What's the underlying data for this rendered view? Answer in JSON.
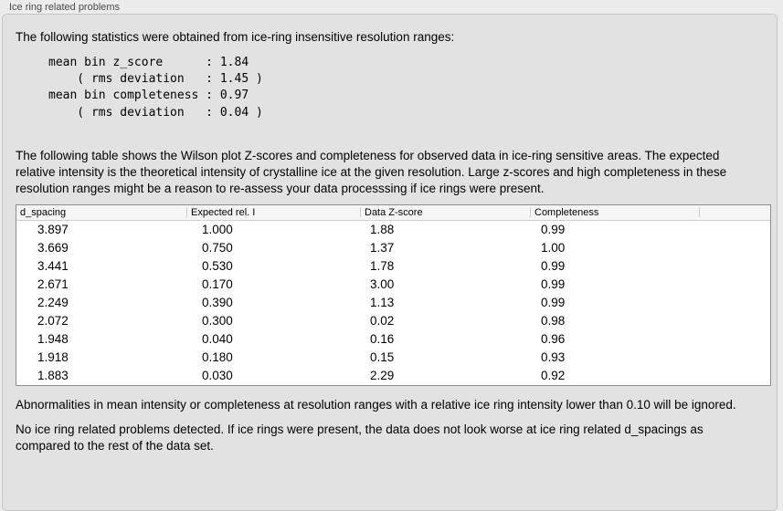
{
  "group_box": {
    "title": "Ice ring related problems"
  },
  "intro_text": "The following statistics were obtained from ice-ring insensitive resolution ranges:",
  "stats_block": "mean bin z_score      : 1.84\n    ( rms deviation   : 1.45 )\nmean bin completeness : 0.97\n    ( rms deviation   : 0.04 )",
  "table_description": "The following table shows the Wilson plot Z-scores and completeness for observed data in ice-ring sensitive areas. The expected relative intensity is the theoretical intensity of crystalline ice at the given resolution. Large z-scores and high completeness in these resolution ranges might be a reason to re-assess your data processsing if ice rings were present.",
  "table": {
    "columns": [
      "d_spacing",
      "Expected rel. I",
      "Data Z-score",
      "Completeness"
    ],
    "rows": [
      [
        "3.897",
        "1.000",
        "1.88",
        "0.99"
      ],
      [
        "3.669",
        "0.750",
        "1.37",
        "1.00"
      ],
      [
        "3.441",
        "0.530",
        "1.78",
        "0.99"
      ],
      [
        "2.671",
        "0.170",
        "3.00",
        "0.99"
      ],
      [
        "2.249",
        "0.390",
        "1.13",
        "0.99"
      ],
      [
        "2.072",
        "0.300",
        "0.02",
        "0.98"
      ],
      [
        "1.948",
        "0.040",
        "0.16",
        "0.96"
      ],
      [
        "1.918",
        "0.180",
        "0.15",
        "0.93"
      ],
      [
        "1.883",
        "0.030",
        "2.29",
        "0.92"
      ]
    ]
  },
  "note_ignore": "Abnormalities in mean intensity or completeness at resolution ranges with a relative ice ring intensity lower than 0.10 will be ignored.",
  "conclusion": "No ice ring related problems detected. If ice rings were present, the data does not look worse at ice ring related d_spacings as compared to the rest of the data set.",
  "colors": {
    "page_background": "#ececec",
    "panel_background": "#e2e2e2",
    "panel_border": "#c6c6c6",
    "table_background": "#ffffff",
    "table_border": "#8e8e8e",
    "table_header_background": "#f6f6f6",
    "header_divider": "#cdcdcd",
    "text": "#000000",
    "group_title_text": "#4a4a4a"
  }
}
